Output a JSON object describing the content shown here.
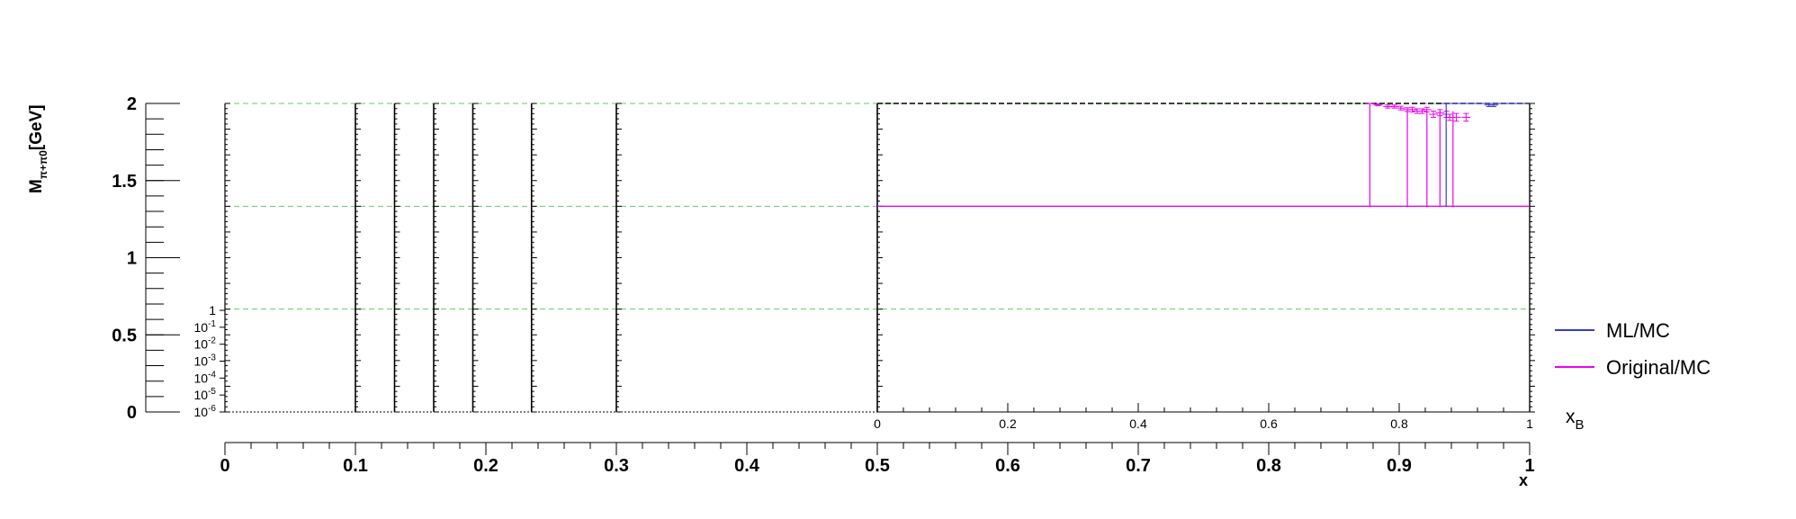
{
  "chart_data": {
    "type": "line",
    "title": "",
    "colors": {
      "ml_mc": "#3a3acc",
      "original_mc": "#ee00ee",
      "guide": "#66cc66",
      "axis": "#000000"
    },
    "legend": {
      "position": "right",
      "entries": [
        {
          "label": "ML/MC",
          "color": "#3a3acc"
        },
        {
          "label": "Original/MC",
          "color": "#ee00ee"
        }
      ]
    },
    "main_axes": {
      "ylabel_main": "M",
      "ylabel_sub": "π+π0",
      "ylabel_unit": "[GeV]",
      "xlabel": "x",
      "xlim": [
        0,
        1
      ],
      "ylim": [
        0,
        2
      ],
      "x_ticks": [
        "0",
        "0.1",
        "0.2",
        "0.3",
        "0.4",
        "0.5",
        "0.6",
        "0.7",
        "0.8",
        "0.9",
        "1"
      ],
      "y_ticks": [
        "0",
        "0.5",
        "1",
        "1.5",
        "2"
      ]
    },
    "bin_edges_x": [
      0,
      0.1,
      0.13,
      0.16,
      0.19,
      0.235,
      0.3,
      0.5,
      1.0
    ],
    "bin_edges_y": [
      0,
      0.667,
      1.333,
      2.0
    ],
    "inset_ratio": {
      "xlabel_main": "x",
      "xlabel_sub": "B",
      "xlim": [
        0,
        1
      ],
      "y_range": [
        1.333,
        2.0
      ],
      "x_ticks": [
        "0",
        "0.2",
        "0.4",
        "0.6",
        "0.8",
        "1"
      ],
      "series": [
        {
          "name": "Original/MC",
          "color": "#ee00ee",
          "x": [
            0.755,
            0.7675,
            0.7825,
            0.7925,
            0.8025,
            0.8125,
            0.82,
            0.8275,
            0.835,
            0.8425,
            0.8525,
            0.8625,
            0.8725,
            0.8775,
            0.8875,
            0.9025
          ],
          "y": [
            2.0,
            1.99,
            1.98,
            1.98,
            1.97,
            1.96,
            1.96,
            1.95,
            1.95,
            1.96,
            1.93,
            1.94,
            1.93,
            1.91,
            1.91,
            1.91
          ],
          "err": [
            0.0,
            0.005,
            0.01,
            0.01,
            0.012,
            0.012,
            0.015,
            0.015,
            0.015,
            0.015,
            0.02,
            0.02,
            0.02,
            0.02,
            0.025,
            0.025
          ]
        },
        {
          "name": "ML/MC",
          "color": "#3a3acc",
          "x": [
            0.872,
            0.9375,
            0.945
          ],
          "y": [
            2.0,
            1.99,
            1.99
          ],
          "err": [
            0.0,
            0.01,
            0.01
          ]
        }
      ]
    },
    "inset_log": {
      "tick_labels": [
        "1",
        "10^-1",
        "10^-2",
        "10^-3",
        "10^-4",
        "10^-5",
        "10^-6"
      ],
      "decades": [
        0,
        -1,
        -2,
        -3,
        -4,
        -5,
        -6
      ]
    }
  }
}
